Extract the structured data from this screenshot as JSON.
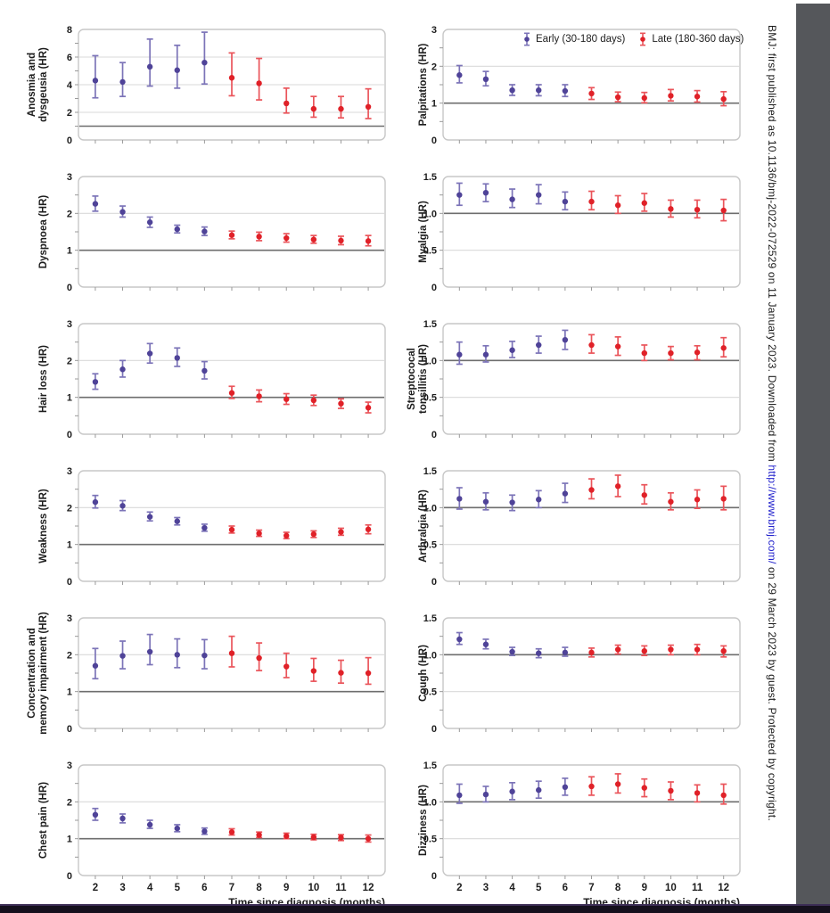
{
  "colors": {
    "early_dot": "#4f4398",
    "early_bar": "#7c74b8",
    "late_dot": "#e02128",
    "late_bar": "#ea555b",
    "grid": "#d9d9d9",
    "ref_line": "#6e6e6e",
    "frame": "#c7c7c7",
    "band": "#55575b",
    "bottom_bar": "#15101d",
    "link": "#2424cd",
    "text": "#1d1d1d"
  },
  "legend": {
    "early_label": "Early (30-180 days)",
    "late_label": "Late (180-360 days)"
  },
  "axis": {
    "xlabel": "Time since diagnosis (months)",
    "x_ticks": [
      "2",
      "3",
      "4",
      "5",
      "6",
      "7",
      "8",
      "9",
      "10",
      "11",
      "12"
    ]
  },
  "sidebar": {
    "text_before": "BMJ: first published as 10.1136/bmj-2022-072529 on 11 January 2023. Downloaded from ",
    "link_text": "http://www.bmj.com/",
    "text_after": " on 29 March 2023 by guest. Protected by copyright."
  },
  "groups_note": {
    "early_months": [
      2,
      6
    ],
    "late_months": [
      7,
      12
    ]
  },
  "chart_data": [
    {
      "type": "errorbar",
      "name": "anosmia-dysgeusia",
      "ylabel_lines": [
        "Anosmia and",
        "dysgeusia (HR)"
      ],
      "ylim": [
        0,
        8
      ],
      "yticks": [
        0,
        2,
        4,
        6,
        8
      ],
      "ytick_labels": [
        "0",
        "2",
        "4",
        "6",
        "8"
      ],
      "ref_y": 1,
      "x": [
        2,
        3,
        4,
        5,
        6,
        7,
        8,
        9,
        10,
        11,
        12
      ],
      "y": [
        4.3,
        4.2,
        5.3,
        5.05,
        5.6,
        4.5,
        4.1,
        2.65,
        2.25,
        2.25,
        2.4
      ],
      "lo": [
        3.05,
        3.15,
        3.9,
        3.75,
        4.05,
        3.2,
        2.9,
        1.95,
        1.65,
        1.6,
        1.55
      ],
      "hi": [
        6.1,
        5.6,
        7.3,
        6.85,
        7.8,
        6.3,
        5.9,
        3.75,
        3.15,
        3.15,
        3.7
      ]
    },
    {
      "type": "errorbar",
      "name": "palpitations",
      "ylabel_lines": [
        "Palpitations (HR)"
      ],
      "ylim": [
        0,
        3
      ],
      "yticks": [
        0,
        1,
        2,
        3
      ],
      "ytick_labels": [
        "0",
        "1",
        "2",
        "3"
      ],
      "ref_y": 1,
      "x": [
        2,
        3,
        4,
        5,
        6,
        7,
        8,
        9,
        10,
        11,
        12
      ],
      "y": [
        1.76,
        1.65,
        1.35,
        1.35,
        1.33,
        1.26,
        1.16,
        1.14,
        1.2,
        1.18,
        1.11
      ],
      "lo": [
        1.55,
        1.47,
        1.21,
        1.2,
        1.18,
        1.1,
        1.04,
        1.01,
        1.06,
        1.03,
        0.93
      ],
      "hi": [
        2.02,
        1.86,
        1.5,
        1.5,
        1.5,
        1.42,
        1.3,
        1.29,
        1.37,
        1.34,
        1.31
      ]
    },
    {
      "type": "errorbar",
      "name": "dyspnoea",
      "ylabel_lines": [
        "Dyspnoea (HR)"
      ],
      "ylim": [
        0,
        3
      ],
      "yticks": [
        0,
        1,
        2,
        3
      ],
      "ytick_labels": [
        "0",
        "1",
        "2",
        "3"
      ],
      "ref_y": 1,
      "x": [
        2,
        3,
        4,
        5,
        6,
        7,
        8,
        9,
        10,
        11,
        12
      ],
      "y": [
        2.26,
        2.04,
        1.76,
        1.57,
        1.51,
        1.41,
        1.37,
        1.33,
        1.29,
        1.26,
        1.25
      ],
      "lo": [
        2.06,
        1.9,
        1.62,
        1.47,
        1.4,
        1.31,
        1.26,
        1.22,
        1.19,
        1.15,
        1.12
      ],
      "hi": [
        2.47,
        2.2,
        1.9,
        1.68,
        1.63,
        1.52,
        1.49,
        1.45,
        1.4,
        1.38,
        1.4
      ]
    },
    {
      "type": "errorbar",
      "name": "myalgia",
      "ylabel_lines": [
        "Myalgia (HR)"
      ],
      "ylim": [
        0,
        1.5
      ],
      "yticks": [
        0,
        0.5,
        1,
        1.5
      ],
      "ytick_labels": [
        "0",
        "0.5",
        "1.0",
        "1.5"
      ],
      "ref_y": 1,
      "x": [
        2,
        3,
        4,
        5,
        6,
        7,
        8,
        9,
        10,
        11,
        12
      ],
      "y": [
        1.25,
        1.28,
        1.19,
        1.25,
        1.16,
        1.16,
        1.11,
        1.14,
        1.06,
        1.05,
        1.04
      ],
      "lo": [
        1.11,
        1.16,
        1.08,
        1.13,
        1.05,
        1.05,
        1.0,
        1.03,
        0.95,
        0.94,
        0.9
      ],
      "hi": [
        1.41,
        1.4,
        1.33,
        1.39,
        1.29,
        1.3,
        1.24,
        1.27,
        1.18,
        1.18,
        1.19
      ]
    },
    {
      "type": "errorbar",
      "name": "hair-loss",
      "ylabel_lines": [
        "Hair loss (HR)"
      ],
      "ylim": [
        0,
        3
      ],
      "yticks": [
        0,
        1,
        2,
        3
      ],
      "ytick_labels": [
        "0",
        "1",
        "2",
        "3"
      ],
      "ref_y": 1,
      "x": [
        2,
        3,
        4,
        5,
        6,
        7,
        8,
        9,
        10,
        11,
        12
      ],
      "y": [
        1.42,
        1.76,
        2.19,
        2.07,
        1.72,
        1.12,
        1.03,
        0.95,
        0.92,
        0.83,
        0.72
      ],
      "lo": [
        1.22,
        1.55,
        1.93,
        1.84,
        1.5,
        0.97,
        0.88,
        0.81,
        0.78,
        0.7,
        0.58
      ],
      "hi": [
        1.64,
        2.0,
        2.46,
        2.34,
        1.97,
        1.3,
        1.2,
        1.1,
        1.06,
        0.96,
        0.87
      ]
    },
    {
      "type": "errorbar",
      "name": "streptococal-tonsillitis",
      "ylabel_lines": [
        "Streptococal",
        "tonsillitis (HR)"
      ],
      "ylim": [
        0,
        1.5
      ],
      "yticks": [
        0,
        0.5,
        1,
        1.5
      ],
      "ytick_labels": [
        "0",
        "0.5",
        "1.0",
        "1.5"
      ],
      "ref_y": 1,
      "x": [
        2,
        3,
        4,
        5,
        6,
        7,
        8,
        9,
        10,
        11,
        12
      ],
      "y": [
        1.08,
        1.08,
        1.14,
        1.21,
        1.28,
        1.21,
        1.19,
        1.1,
        1.1,
        1.11,
        1.17
      ],
      "lo": [
        0.95,
        0.98,
        1.04,
        1.1,
        1.15,
        1.1,
        1.07,
        1.0,
        1.01,
        1.01,
        1.05
      ],
      "hi": [
        1.25,
        1.2,
        1.26,
        1.33,
        1.41,
        1.35,
        1.32,
        1.21,
        1.19,
        1.2,
        1.31
      ]
    },
    {
      "type": "errorbar",
      "name": "weakness",
      "ylabel_lines": [
        "Weakness (HR)"
      ],
      "ylim": [
        0,
        3
      ],
      "yticks": [
        0,
        1,
        2,
        3
      ],
      "ytick_labels": [
        "0",
        "1",
        "2",
        "3"
      ],
      "ref_y": 1,
      "x": [
        2,
        3,
        4,
        5,
        6,
        7,
        8,
        9,
        10,
        11,
        12
      ],
      "y": [
        2.15,
        2.05,
        1.75,
        1.63,
        1.45,
        1.4,
        1.3,
        1.24,
        1.28,
        1.34,
        1.41
      ],
      "lo": [
        1.99,
        1.92,
        1.64,
        1.53,
        1.36,
        1.31,
        1.22,
        1.16,
        1.19,
        1.25,
        1.29
      ],
      "hi": [
        2.33,
        2.19,
        1.88,
        1.73,
        1.55,
        1.5,
        1.39,
        1.33,
        1.37,
        1.44,
        1.53
      ]
    },
    {
      "type": "errorbar",
      "name": "arthralgia",
      "ylabel_lines": [
        "Arthralgia (HR)"
      ],
      "ylim": [
        0,
        1.5
      ],
      "yticks": [
        0,
        0.5,
        1,
        1.5
      ],
      "ytick_labels": [
        "0",
        "0.5",
        "1.0",
        "1.5"
      ],
      "ref_y": 1,
      "x": [
        2,
        3,
        4,
        5,
        6,
        7,
        8,
        9,
        10,
        11,
        12
      ],
      "y": [
        1.12,
        1.08,
        1.07,
        1.11,
        1.19,
        1.24,
        1.29,
        1.17,
        1.08,
        1.11,
        1.12
      ],
      "lo": [
        0.98,
        0.97,
        0.96,
        1.0,
        1.07,
        1.12,
        1.15,
        1.05,
        0.97,
        0.99,
        0.97
      ],
      "hi": [
        1.27,
        1.2,
        1.17,
        1.23,
        1.33,
        1.39,
        1.44,
        1.31,
        1.2,
        1.24,
        1.29
      ]
    },
    {
      "type": "errorbar",
      "name": "concentration-memory",
      "ylabel_lines": [
        "Concentration and",
        "memory impairment (HR)"
      ],
      "ylim": [
        0,
        3
      ],
      "yticks": [
        0,
        1,
        2,
        3
      ],
      "ytick_labels": [
        "0",
        "1",
        "2",
        "3"
      ],
      "ref_y": 1,
      "x": [
        2,
        3,
        4,
        5,
        6,
        7,
        8,
        9,
        10,
        11,
        12
      ],
      "y": [
        1.7,
        1.97,
        2.08,
        2.0,
        1.98,
        2.04,
        1.91,
        1.68,
        1.56,
        1.51,
        1.5
      ],
      "lo": [
        1.35,
        1.62,
        1.73,
        1.65,
        1.62,
        1.67,
        1.57,
        1.38,
        1.28,
        1.23,
        1.2
      ],
      "hi": [
        2.17,
        2.37,
        2.55,
        2.43,
        2.41,
        2.5,
        2.32,
        2.04,
        1.9,
        1.85,
        1.92
      ]
    },
    {
      "type": "errorbar",
      "name": "cough",
      "ylabel_lines": [
        "Cough (HR)"
      ],
      "ylim": [
        0,
        1.5
      ],
      "yticks": [
        0,
        0.5,
        1,
        1.5
      ],
      "ytick_labels": [
        "0",
        "0.5",
        "1.0",
        "1.5"
      ],
      "ref_y": 1,
      "x": [
        2,
        3,
        4,
        5,
        6,
        7,
        8,
        9,
        10,
        11,
        12
      ],
      "y": [
        1.21,
        1.14,
        1.04,
        1.02,
        1.03,
        1.03,
        1.07,
        1.05,
        1.07,
        1.07,
        1.05
      ],
      "lo": [
        1.14,
        1.08,
        0.99,
        0.96,
        0.98,
        0.97,
        1.01,
        0.99,
        1.0,
        1.0,
        0.97
      ],
      "hi": [
        1.3,
        1.21,
        1.1,
        1.08,
        1.1,
        1.09,
        1.13,
        1.12,
        1.13,
        1.14,
        1.12
      ]
    },
    {
      "type": "errorbar",
      "name": "chest-pain",
      "ylabel_lines": [
        "Chest pain (HR)"
      ],
      "ylim": [
        0,
        3
      ],
      "yticks": [
        0,
        1,
        2,
        3
      ],
      "ytick_labels": [
        "0",
        "1",
        "2",
        "3"
      ],
      "ref_y": 1,
      "x": [
        2,
        3,
        4,
        5,
        6,
        7,
        8,
        9,
        10,
        11,
        12
      ],
      "y": [
        1.65,
        1.55,
        1.38,
        1.28,
        1.2,
        1.18,
        1.1,
        1.07,
        1.04,
        1.03,
        1.0
      ],
      "lo": [
        1.5,
        1.43,
        1.28,
        1.19,
        1.12,
        1.1,
        1.03,
        1.0,
        0.97,
        0.95,
        0.91
      ],
      "hi": [
        1.82,
        1.67,
        1.5,
        1.38,
        1.29,
        1.27,
        1.18,
        1.15,
        1.12,
        1.11,
        1.1
      ]
    },
    {
      "type": "errorbar",
      "name": "dizziness",
      "ylabel_lines": [
        "Dizziness (HR)"
      ],
      "ylim": [
        0,
        1.5
      ],
      "yticks": [
        0,
        0.5,
        1,
        1.5
      ],
      "ytick_labels": [
        "0",
        "0.5",
        "1.0",
        "1.5"
      ],
      "ref_y": 1,
      "x": [
        2,
        3,
        4,
        5,
        6,
        7,
        8,
        9,
        10,
        11,
        12
      ],
      "y": [
        1.09,
        1.1,
        1.14,
        1.16,
        1.2,
        1.21,
        1.24,
        1.19,
        1.15,
        1.12,
        1.09
      ],
      "lo": [
        0.98,
        1.0,
        1.03,
        1.05,
        1.09,
        1.09,
        1.12,
        1.07,
        1.03,
        1.0,
        0.97
      ],
      "hi": [
        1.24,
        1.21,
        1.26,
        1.28,
        1.32,
        1.34,
        1.38,
        1.31,
        1.27,
        1.23,
        1.24
      ]
    }
  ]
}
